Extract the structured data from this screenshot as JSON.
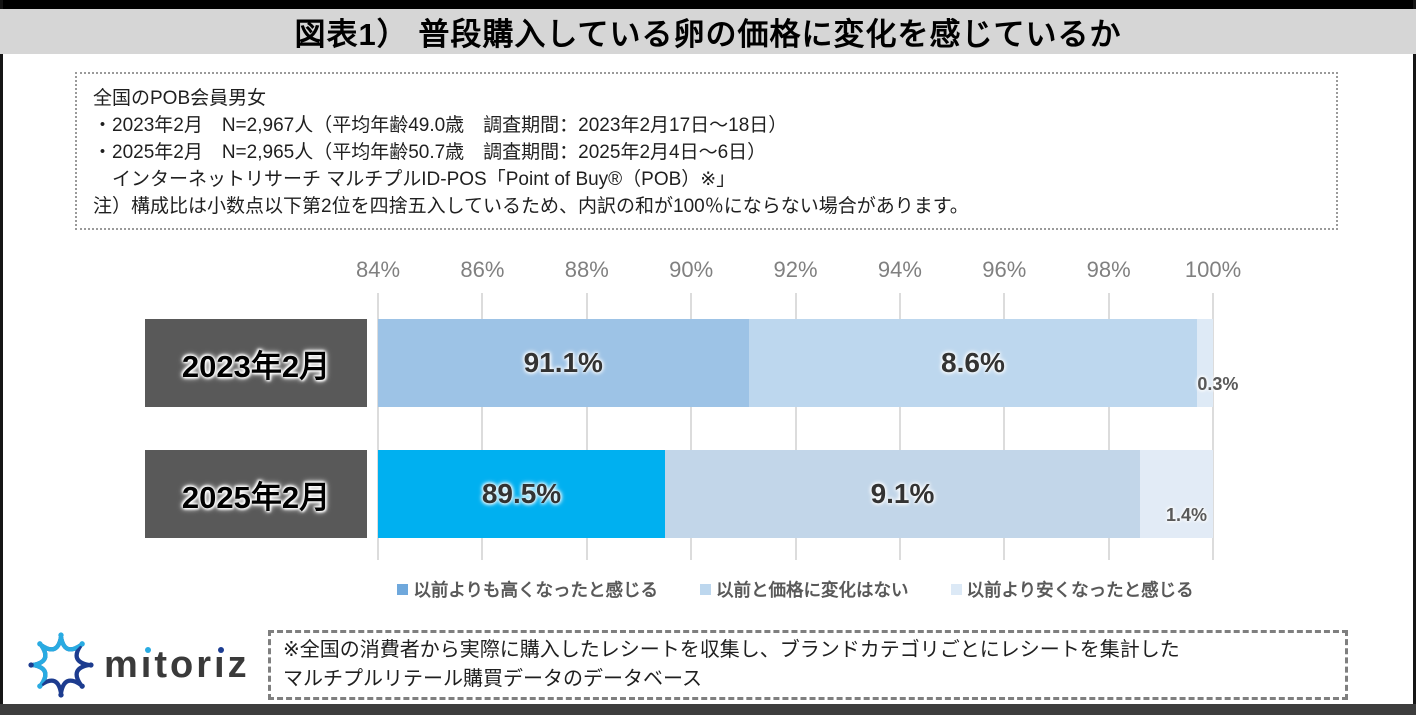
{
  "header": {
    "title": "図表1） 普段購入している卵の価格に変化を感じているか"
  },
  "survey_info": {
    "lines": [
      "全国のPOB会員男女",
      "・2023年2月　N=2,967人（平均年齢49.0歳　調査期間：2023年2月17日～18日）",
      "・2025年2月　N=2,965人（平均年齢50.7歳　調査期間：2025年2月4日～6日）",
      "　インターネットリサーチ マルチプルID-POS「Point of Buy®（POB）※」",
      "注）構成比は小数点以下第2位を四捨五入しているため、内訳の和が100％にならない場合があります。"
    ]
  },
  "chart_data": {
    "type": "bar",
    "orientation": "horizontal",
    "stacked": true,
    "categories": [
      "2023年2月",
      "2025年2月"
    ],
    "series": [
      {
        "name": "以前よりも高くなったと感じる",
        "values": [
          91.1,
          89.5
        ],
        "cell_colors": [
          "#9DC3E6",
          "#00B0F0"
        ],
        "legend_color": "#6FA8DC"
      },
      {
        "name": "以前と価格に変化はない",
        "values": [
          8.6,
          9.1
        ],
        "cell_colors": [
          "#BDD7EE",
          "#C2D6E9"
        ],
        "legend_color": "#BDD7EE"
      },
      {
        "name": "以前より安くなったと感じる",
        "values": [
          0.3,
          1.4
        ],
        "cell_colors": [
          "#DEEAF6",
          "#E2EBF6"
        ],
        "legend_color": "#DCE9F6"
      }
    ],
    "value_labels": [
      [
        "91.1%",
        "8.6%",
        "0.3%"
      ],
      [
        "89.5%",
        "9.1%",
        "1.4%"
      ]
    ],
    "axis": {
      "min": 84,
      "max": 100,
      "step": 2,
      "ticks": [
        "84%",
        "86%",
        "88%",
        "90%",
        "92%",
        "94%",
        "96%",
        "98%",
        "100%"
      ]
    },
    "grid": true,
    "legend_position": "bottom"
  },
  "footer": {
    "logo_text": "mitoriz",
    "logo_parts": [
      "m",
      "ı",
      "tor",
      "ı",
      "z"
    ],
    "note_lines": [
      "※全国の消費者から実際に購入したレシートを収集し、ブランドカテゴリごとにレシートを集計した",
      "マルチプルリテール購買データのデータベース"
    ]
  },
  "colors": {
    "highlight_blue": "#00B0F0",
    "bar_blue": "#9DC3E6",
    "bar_light_blue": "#BDD7EE",
    "bar_pale_blue": "#DEEAF6",
    "category_box": "#595959",
    "header_band": "#D6D6D6"
  }
}
